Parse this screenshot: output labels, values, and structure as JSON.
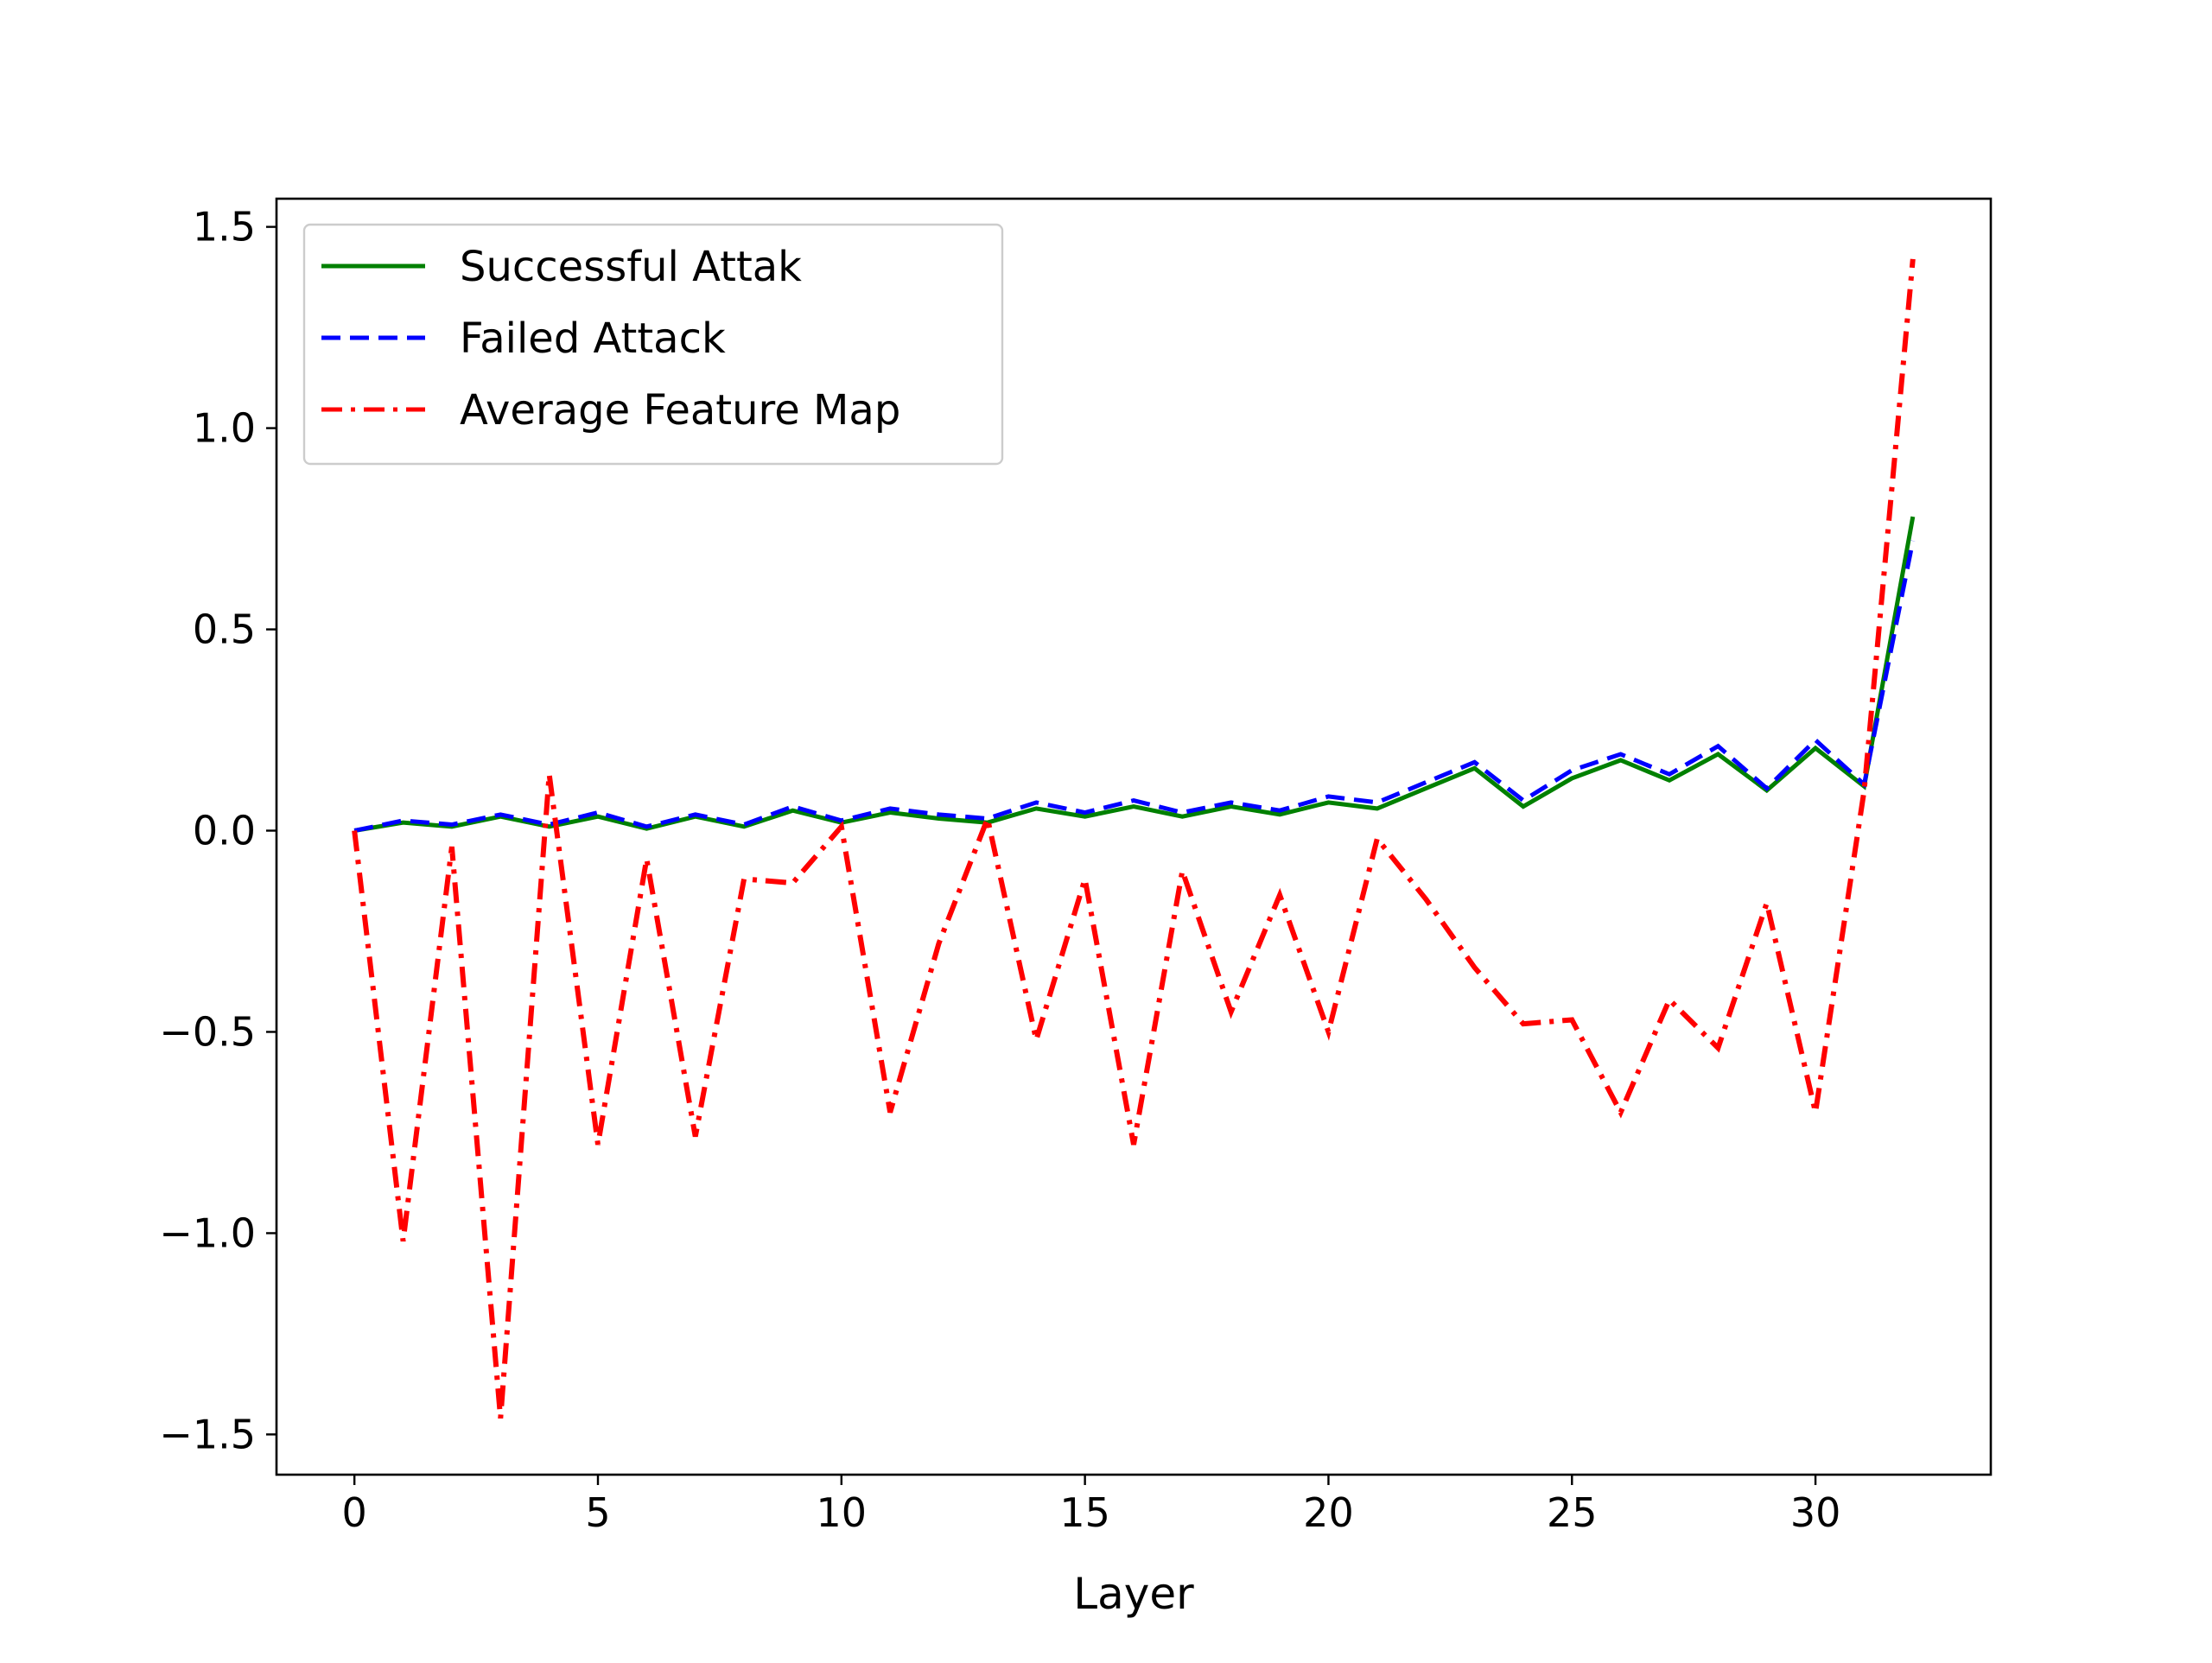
{
  "chart_data": {
    "type": "line",
    "title": "",
    "xlabel": "Layer",
    "ylabel": "",
    "xlim": [
      -1.6,
      33.6
    ],
    "ylim": [
      -1.6,
      1.57
    ],
    "xticks": [
      0,
      5,
      10,
      15,
      20,
      25,
      30
    ],
    "xtick_labels": [
      "0",
      "5",
      "10",
      "15",
      "20",
      "25",
      "30"
    ],
    "yticks": [
      -1.5,
      -1.0,
      -0.5,
      0.0,
      0.5,
      1.0,
      1.5
    ],
    "ytick_labels": [
      "−1.5",
      "−1.0",
      "−0.5",
      "0.0",
      "0.5",
      "1.0",
      "1.5"
    ],
    "grid": false,
    "legend_position": "top-left",
    "x": [
      0,
      1,
      2,
      3,
      4,
      5,
      6,
      7,
      8,
      9,
      10,
      11,
      12,
      13,
      14,
      15,
      16,
      17,
      18,
      19,
      20,
      21,
      22,
      23,
      24,
      25,
      26,
      27,
      28,
      29,
      30,
      31,
      32
    ],
    "series": [
      {
        "name": "Successful Attak",
        "color": "#008000",
        "dash": "solid",
        "values": [
          0.0,
          0.02,
          0.01,
          0.035,
          0.01,
          0.035,
          0.005,
          0.035,
          0.01,
          0.05,
          0.02,
          0.045,
          0.03,
          0.02,
          0.055,
          0.035,
          0.06,
          0.035,
          0.06,
          0.04,
          0.07,
          0.055,
          0.105,
          0.155,
          0.06,
          0.13,
          0.175,
          0.125,
          0.19,
          0.1,
          0.205,
          0.11,
          0.78
        ]
      },
      {
        "name": "Failed Attack",
        "color": "#0000ff",
        "dash": "dashed",
        "values": [
          0.0,
          0.025,
          0.015,
          0.04,
          0.015,
          0.045,
          0.01,
          0.04,
          0.015,
          0.06,
          0.025,
          0.055,
          0.04,
          0.03,
          0.07,
          0.045,
          0.075,
          0.045,
          0.07,
          0.05,
          0.085,
          0.07,
          0.12,
          0.17,
          0.075,
          0.15,
          0.19,
          0.14,
          0.21,
          0.105,
          0.225,
          0.115,
          0.72
        ]
      },
      {
        "name": "Average Feature Map",
        "color": "#ff0000",
        "dash": "dashdot",
        "values": [
          0.0,
          -1.02,
          -0.04,
          -1.46,
          0.14,
          -0.78,
          -0.07,
          -0.76,
          -0.12,
          -0.13,
          0.01,
          -0.7,
          -0.28,
          0.03,
          -0.52,
          -0.12,
          -0.78,
          -0.1,
          -0.45,
          -0.16,
          -0.5,
          -0.02,
          -0.17,
          -0.34,
          -0.48,
          -0.47,
          -0.7,
          -0.42,
          -0.54,
          -0.18,
          -0.7,
          0.1,
          1.42
        ]
      }
    ]
  }
}
